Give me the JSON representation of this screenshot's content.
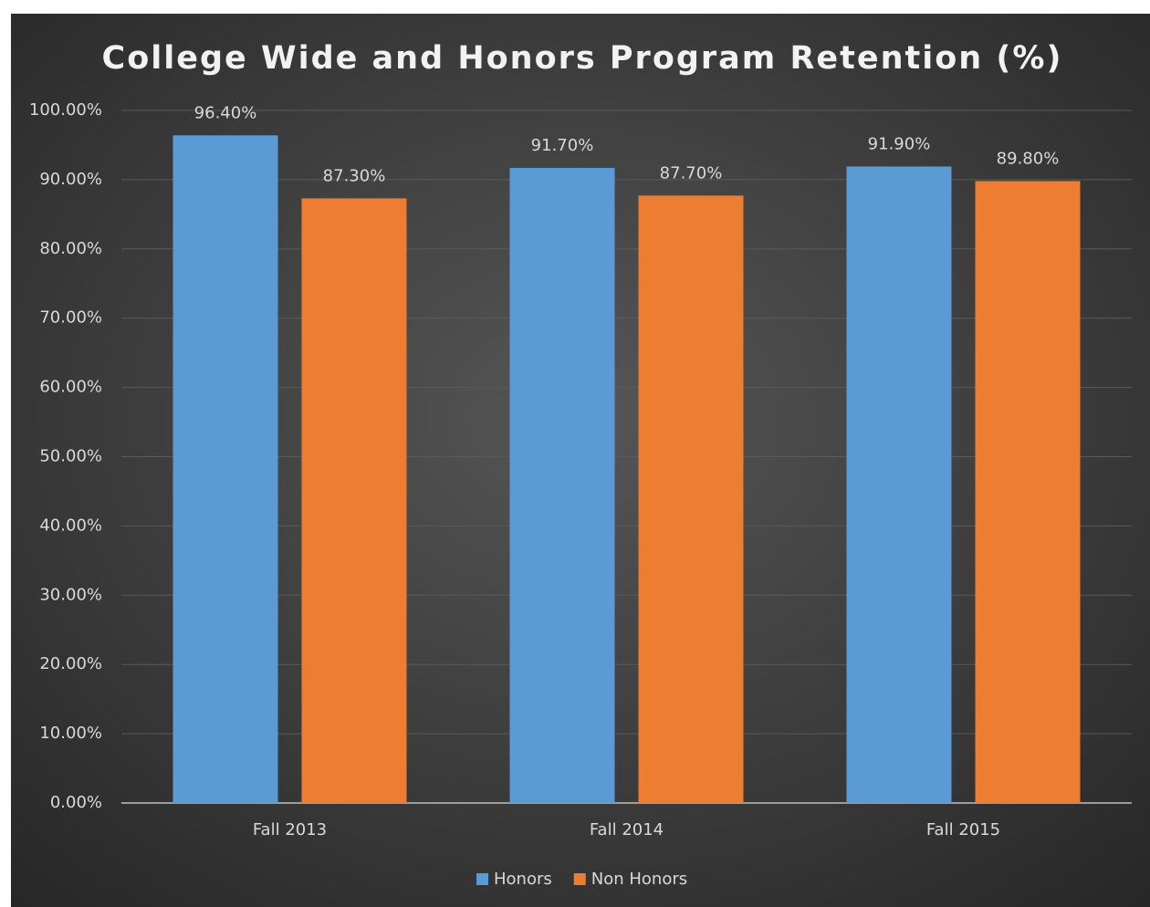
{
  "chart_data": {
    "type": "bar",
    "title": "College Wide and Honors Program Retention (%)",
    "categories": [
      "Fall 2013",
      "Fall 2014",
      "Fall 2015"
    ],
    "series": [
      {
        "name": "Honors",
        "color": "#5b9bd5",
        "values": [
          96.4,
          91.7,
          91.9
        ],
        "value_labels": [
          "96.40%",
          "91.70%",
          "91.90%"
        ]
      },
      {
        "name": "Non Honors",
        "color": "#ed7d31",
        "values": [
          87.3,
          87.7,
          89.8
        ],
        "value_labels": [
          "87.30%",
          "87.70%",
          "89.80%"
        ]
      }
    ],
    "ylim": [
      0,
      100
    ],
    "yticks": [
      {
        "value": 0,
        "label": "0.00%"
      },
      {
        "value": 10,
        "label": "10.00%"
      },
      {
        "value": 20,
        "label": "20.00%"
      },
      {
        "value": 30,
        "label": "30.00%"
      },
      {
        "value": 40,
        "label": "40.00%"
      },
      {
        "value": 50,
        "label": "50.00%"
      },
      {
        "value": 60,
        "label": "60.00%"
      },
      {
        "value": 70,
        "label": "70.00%"
      },
      {
        "value": 80,
        "label": "80.00%"
      },
      {
        "value": 90,
        "label": "90.00%"
      },
      {
        "value": 100,
        "label": "100.00%"
      }
    ],
    "grid": true,
    "legend": "bottom"
  }
}
